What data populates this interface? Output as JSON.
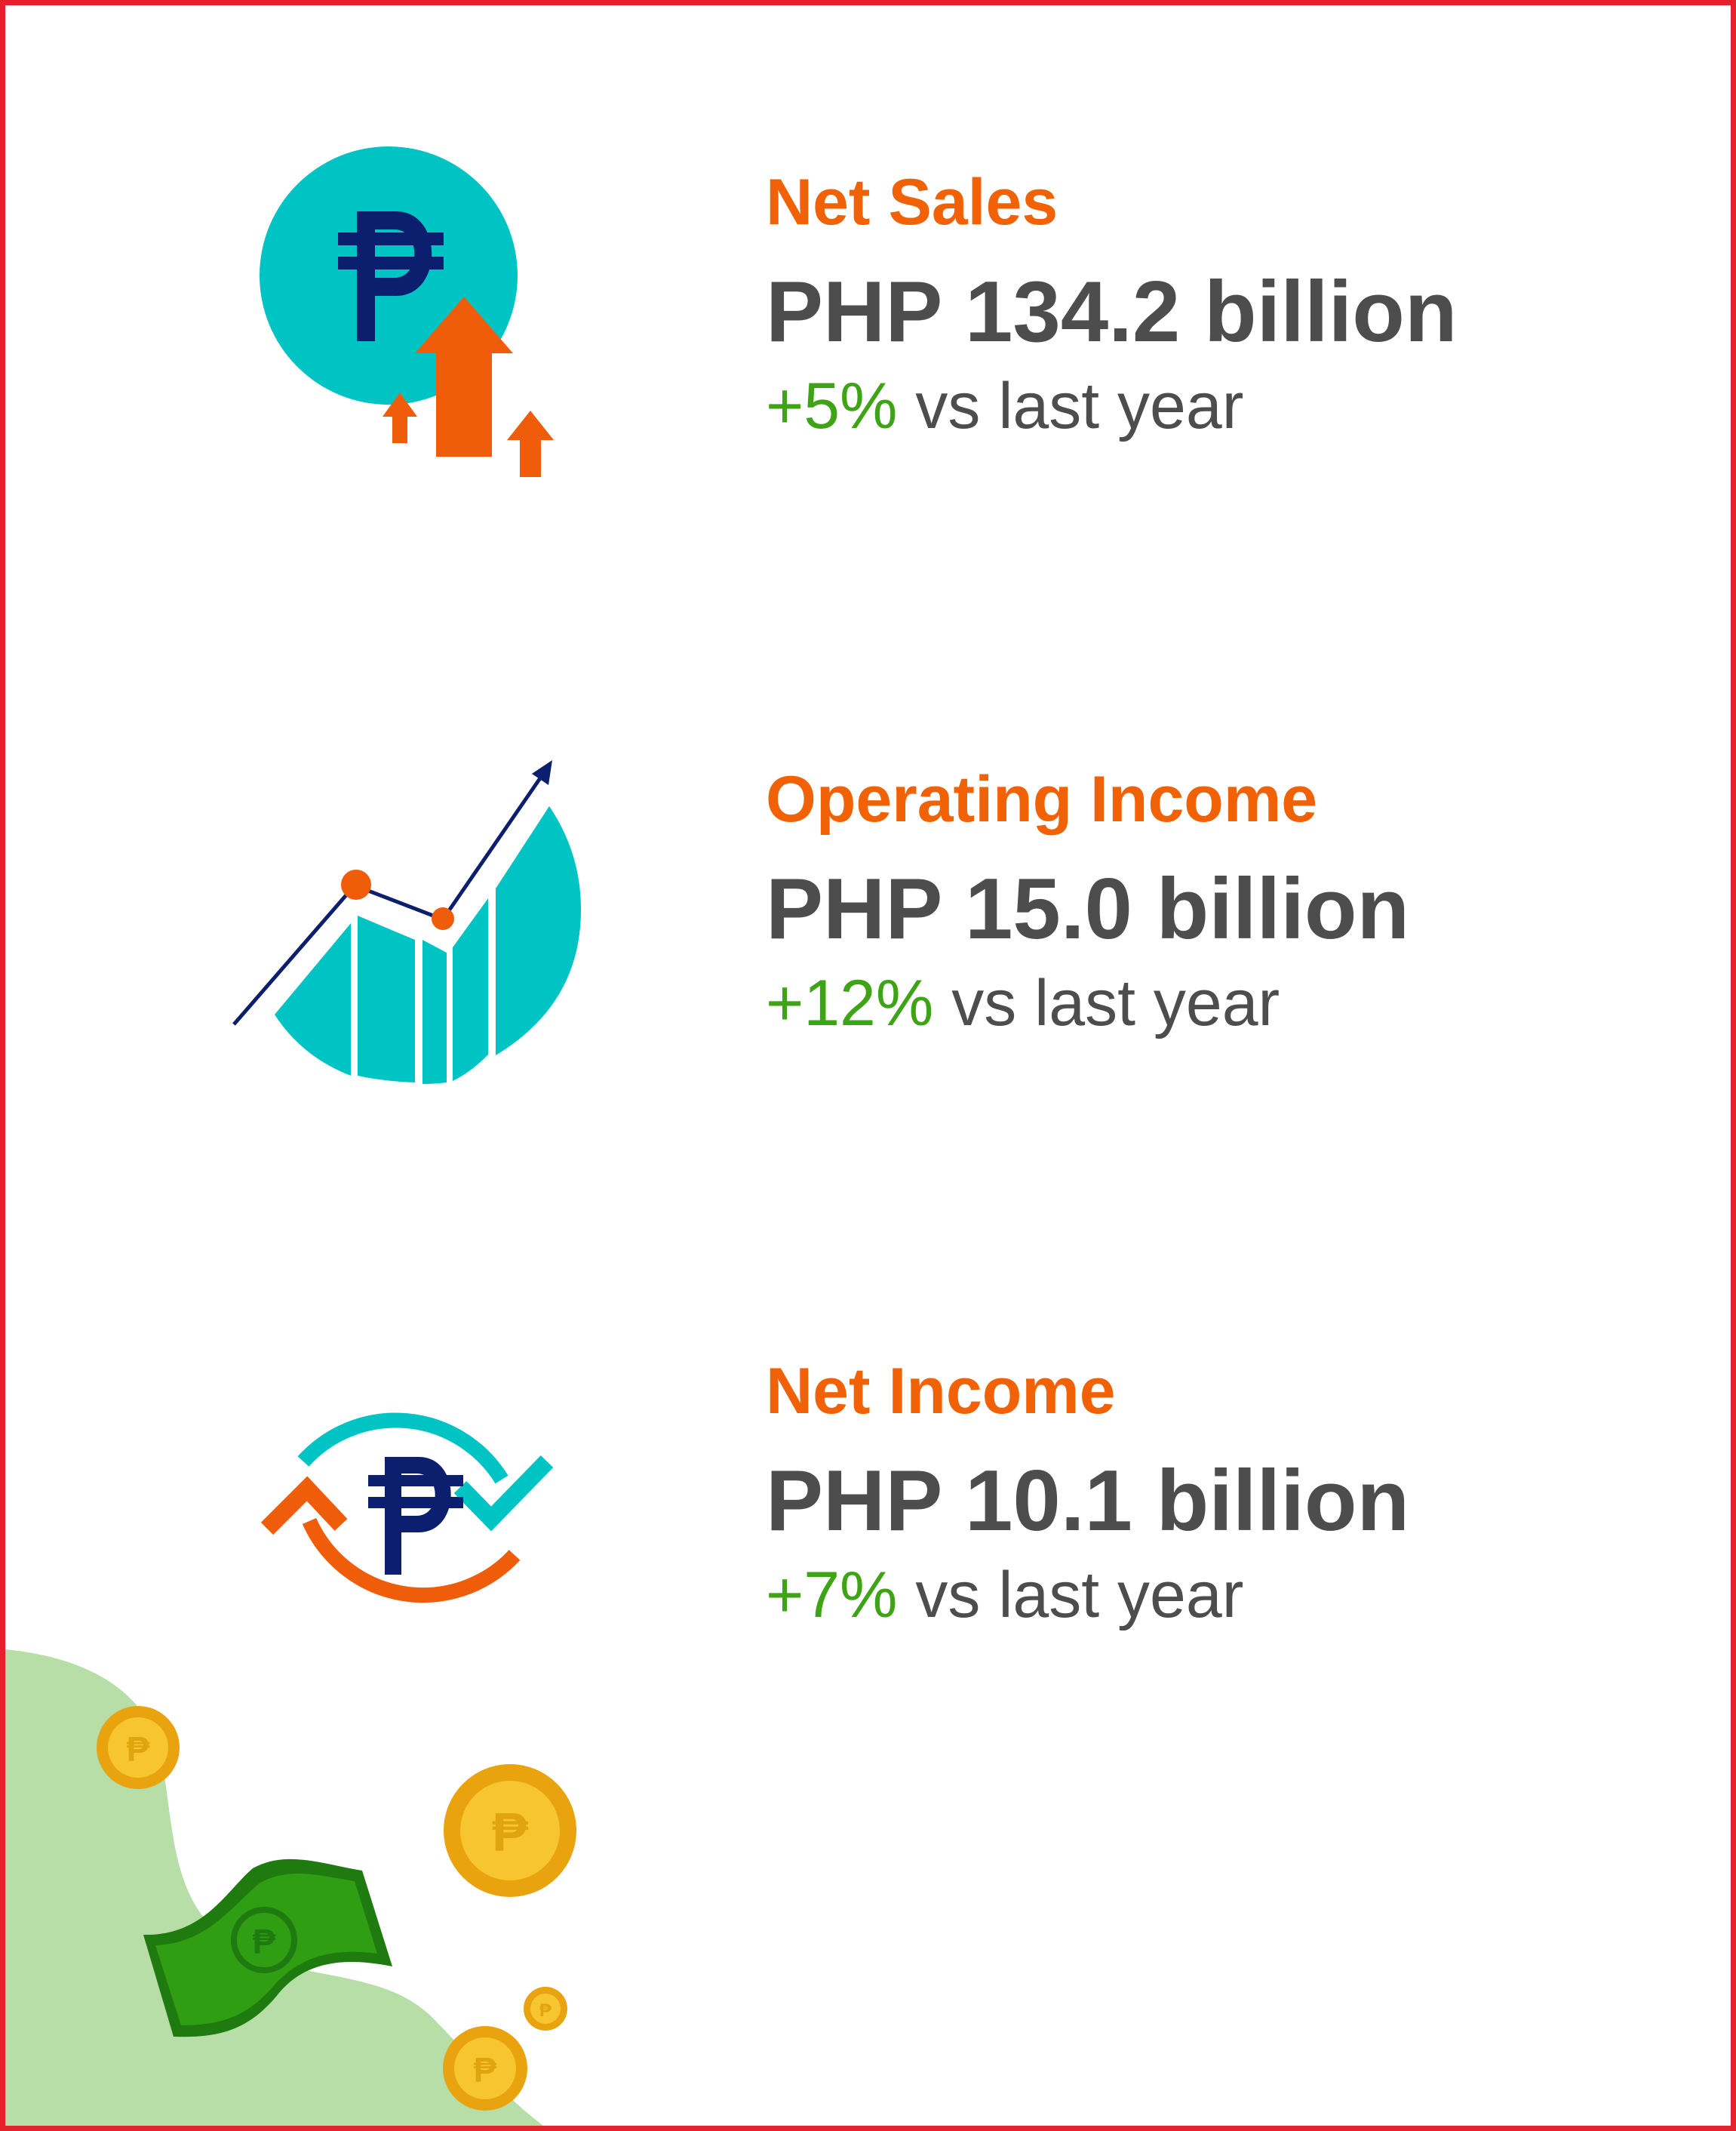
{
  "metrics": [
    {
      "title": "Net Sales",
      "value": "PHP 134.2 billion",
      "change_pct": "+5%",
      "change_suffix": " vs last year",
      "icon": "peso-coin-up-arrows-icon"
    },
    {
      "title": "Operating Income",
      "value": "PHP 15.0 billion",
      "change_pct": "+12%",
      "change_suffix": " vs last year",
      "icon": "growth-chart-icon"
    },
    {
      "title": "Net Income",
      "value": "PHP 10.1 billion",
      "change_pct": "+7%",
      "change_suffix": " vs last year",
      "icon": "peso-cycle-arrows-icon"
    }
  ],
  "colors": {
    "frame": "#e3222d",
    "title": "#f06205",
    "value": "#4d4d4d",
    "positive": "#3ea416",
    "teal": "#00c4c4",
    "navy": "#0b1f6e",
    "orange": "#ef5d0a",
    "coin": "#f3b81e",
    "bill": "#2f9e12",
    "hill": "#b7dea7"
  },
  "decoration": [
    "money-hill-illustration",
    "peso-coin-icon",
    "banknote-icon"
  ]
}
